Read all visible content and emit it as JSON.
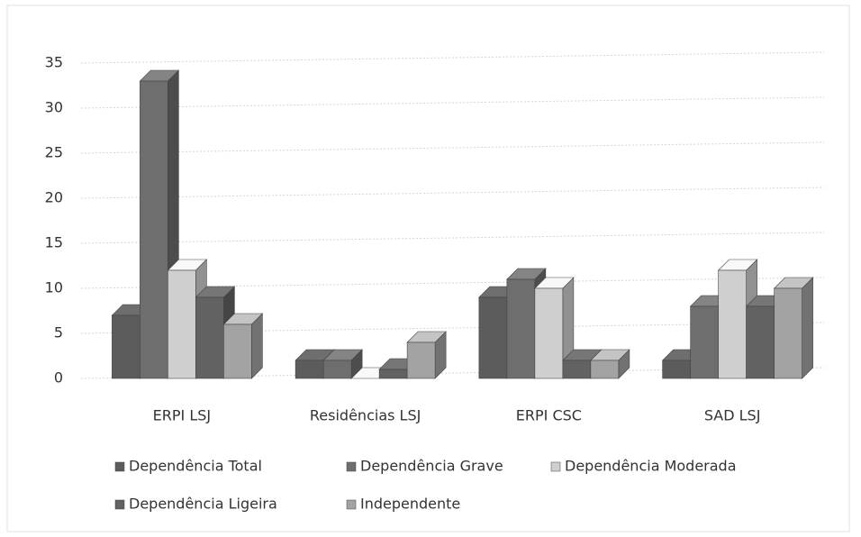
{
  "chart_data": {
    "type": "bar",
    "categories": [
      "ERPI LSJ",
      "Residências LSJ",
      "ERPI CSC",
      "SAD LSJ"
    ],
    "series": [
      {
        "name": "Dependência Total",
        "color": "#5c5c5c",
        "values": [
          7,
          2,
          9,
          2
        ]
      },
      {
        "name": "Dependência Grave",
        "color": "#6e6e6e",
        "values": [
          33,
          2,
          11,
          8
        ]
      },
      {
        "name": "Dependência Moderada",
        "color": "#cfcfcf",
        "values": [
          12,
          0,
          10,
          12
        ]
      },
      {
        "name": "Dependência Ligeira",
        "color": "#626262",
        "values": [
          9,
          1,
          2,
          8
        ]
      },
      {
        "name": "Independente",
        "color": "#a3a3a3",
        "values": [
          6,
          4,
          2,
          10
        ]
      }
    ],
    "ylim": [
      0,
      35
    ],
    "yticks": [
      0,
      5,
      10,
      15,
      20,
      25,
      30,
      35
    ],
    "grid": true,
    "legend": "bottom"
  }
}
